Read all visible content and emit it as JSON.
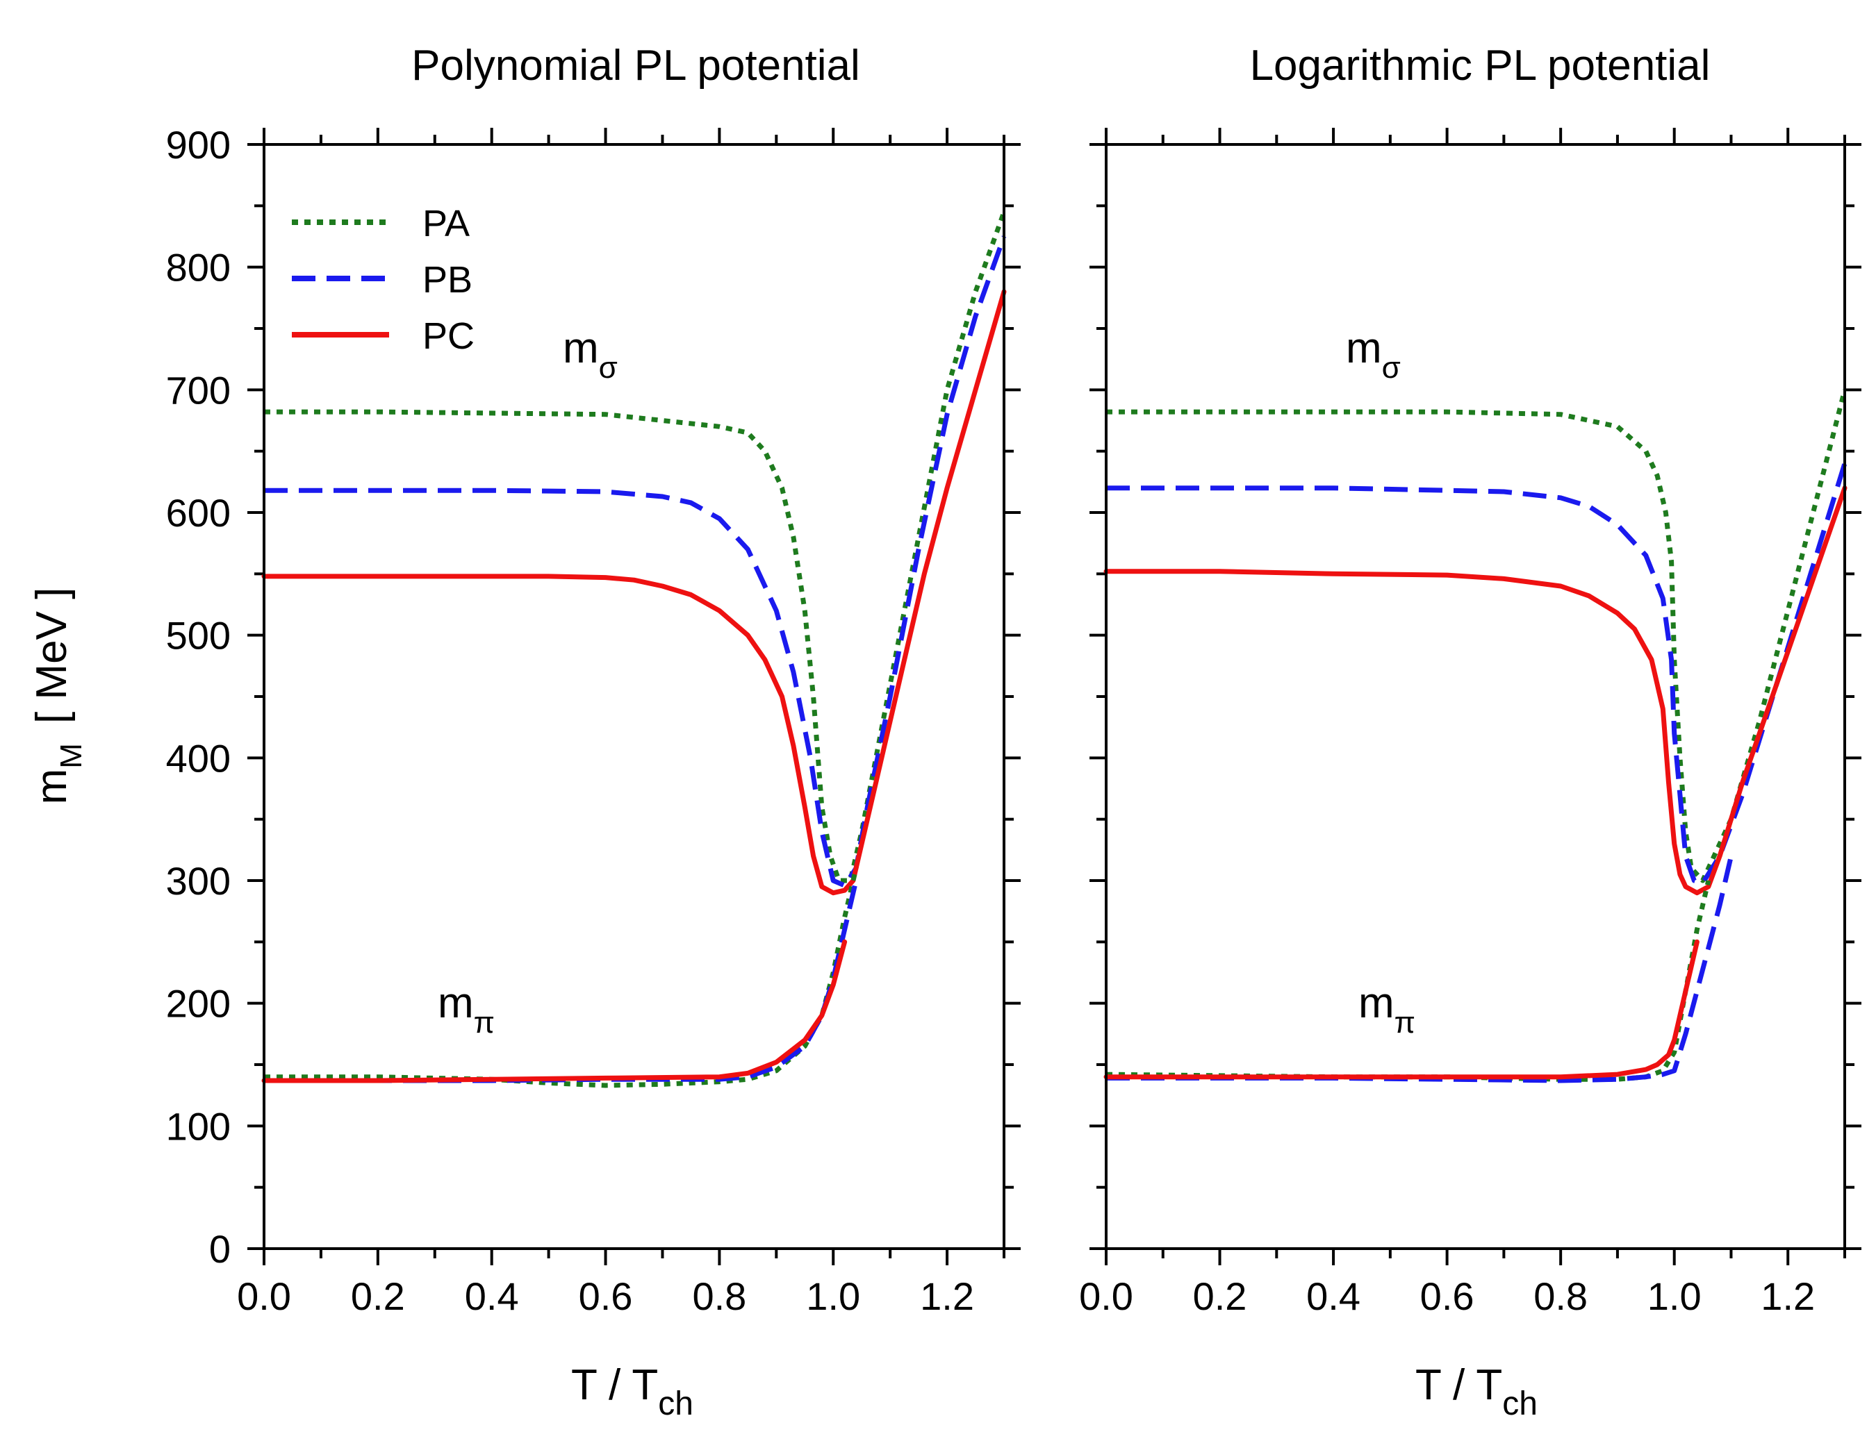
{
  "chart_data": [
    {
      "type": "line",
      "title": "Polynomial PL potential",
      "xlabel": "T / T",
      "xlabel_sub": "ch",
      "ylabel": "m",
      "ylabel_sub": "M",
      "ylabel_unit": "[ MeV ]",
      "xlim": [
        0.0,
        1.3
      ],
      "ylim": [
        0,
        900
      ],
      "x_ticks": [
        "0.0",
        "0.2",
        "0.4",
        "0.6",
        "0.8",
        "1.0",
        "1.2"
      ],
      "y_ticks": [
        "0",
        "100",
        "200",
        "300",
        "400",
        "500",
        "600",
        "700",
        "800",
        "900"
      ],
      "legend": {
        "position": "top-left",
        "entries": [
          "PA",
          "PB",
          "PC"
        ]
      },
      "annotations": [
        {
          "text": "m",
          "sub": "σ",
          "x": 0.52,
          "y": 720
        },
        {
          "text": "m",
          "sub": "π",
          "x": 0.31,
          "y": 185
        }
      ],
      "series": [
        {
          "name": "PA",
          "color": "#1e7b1e",
          "style": "dotted",
          "branch": "sigma",
          "x": [
            0.0,
            0.2,
            0.4,
            0.6,
            0.7,
            0.8,
            0.85,
            0.88,
            0.91,
            0.93,
            0.95,
            0.965,
            0.98,
            0.995,
            1.01,
            1.03,
            1.05,
            1.1,
            1.15,
            1.2,
            1.25,
            1.3
          ],
          "y": [
            682,
            682,
            681,
            680,
            675,
            670,
            665,
            650,
            620,
            580,
            520,
            450,
            360,
            320,
            300,
            300,
            340,
            460,
            580,
            700,
            780,
            845
          ]
        },
        {
          "name": "PB",
          "color": "#1a1aee",
          "style": "dashed",
          "branch": "sigma",
          "x": [
            0.0,
            0.2,
            0.4,
            0.6,
            0.7,
            0.75,
            0.8,
            0.85,
            0.9,
            0.93,
            0.96,
            0.98,
            1.0,
            1.02,
            1.04,
            1.06,
            1.1,
            1.15,
            1.2,
            1.25,
            1.3
          ],
          "y": [
            618,
            618,
            618,
            617,
            613,
            608,
            595,
            570,
            520,
            470,
            400,
            340,
            300,
            296,
            310,
            360,
            450,
            570,
            680,
            760,
            825
          ]
        },
        {
          "name": "PC",
          "color": "#ee1111",
          "style": "solid",
          "branch": "sigma",
          "x": [
            0.0,
            0.2,
            0.4,
            0.5,
            0.6,
            0.65,
            0.7,
            0.75,
            0.8,
            0.85,
            0.88,
            0.91,
            0.93,
            0.95,
            0.965,
            0.98,
            1.0,
            1.02,
            1.035,
            1.05,
            1.08,
            1.12,
            1.16,
            1.2,
            1.25,
            1.3
          ],
          "y": [
            548,
            548,
            548,
            548,
            547,
            545,
            540,
            533,
            520,
            500,
            480,
            450,
            410,
            360,
            320,
            295,
            290,
            292,
            300,
            330,
            390,
            470,
            550,
            620,
            700,
            780
          ]
        },
        {
          "name": "PA",
          "color": "#1e7b1e",
          "style": "dotted",
          "branch": "pi",
          "x": [
            0.0,
            0.2,
            0.4,
            0.5,
            0.6,
            0.7,
            0.8,
            0.85,
            0.9,
            0.95,
            0.98,
            1.0,
            1.02,
            1.04
          ],
          "y": [
            140,
            140,
            138,
            135,
            133,
            134,
            136,
            138,
            145,
            165,
            190,
            225,
            270,
            310
          ]
        },
        {
          "name": "PB",
          "color": "#1a1aee",
          "style": "dashed",
          "branch": "pi",
          "x": [
            0.0,
            0.2,
            0.4,
            0.6,
            0.8,
            0.85,
            0.9,
            0.95,
            0.98,
            1.0,
            1.02,
            1.04
          ],
          "y": [
            137,
            137,
            137,
            138,
            138,
            140,
            148,
            165,
            190,
            220,
            260,
            300
          ]
        },
        {
          "name": "PC",
          "color": "#ee1111",
          "style": "solid",
          "branch": "pi",
          "x": [
            0.0,
            0.2,
            0.4,
            0.6,
            0.8,
            0.85,
            0.9,
            0.95,
            0.98,
            1.0,
            1.02
          ],
          "y": [
            137,
            137,
            138,
            139,
            140,
            143,
            152,
            170,
            190,
            215,
            250
          ]
        }
      ]
    },
    {
      "type": "line",
      "title": "Logarithmic PL potential",
      "xlabel": "T / T",
      "xlabel_sub": "ch",
      "xlim": [
        0.0,
        1.3
      ],
      "ylim": [
        0,
        900
      ],
      "x_ticks": [
        "0.0",
        "0.2",
        "0.4",
        "0.6",
        "0.8",
        "1.0",
        "1.2"
      ],
      "y_ticks": [],
      "annotations": [
        {
          "text": "m",
          "sub": "σ",
          "x": 0.43,
          "y": 720
        },
        {
          "text": "m",
          "sub": "π",
          "x": 0.45,
          "y": 185
        }
      ],
      "series": [
        {
          "name": "PA",
          "color": "#1e7b1e",
          "style": "dotted",
          "branch": "sigma",
          "x": [
            0.0,
            0.2,
            0.4,
            0.6,
            0.8,
            0.9,
            0.95,
            0.97,
            0.985,
            0.995,
            1.0,
            1.01,
            1.02,
            1.03,
            1.05,
            1.1,
            1.15,
            1.2,
            1.25,
            1.3
          ],
          "y": [
            682,
            682,
            682,
            682,
            680,
            670,
            650,
            630,
            600,
            560,
            480,
            400,
            340,
            310,
            300,
            350,
            430,
            520,
            610,
            700
          ]
        },
        {
          "name": "PB",
          "color": "#1a1aee",
          "style": "dashed",
          "branch": "sigma",
          "x": [
            0.0,
            0.2,
            0.4,
            0.6,
            0.7,
            0.8,
            0.85,
            0.9,
            0.95,
            0.98,
            0.995,
            1.0,
            1.01,
            1.02,
            1.035,
            1.05,
            1.08,
            1.12,
            1.18,
            1.24,
            1.3
          ],
          "y": [
            620,
            620,
            620,
            618,
            617,
            612,
            605,
            590,
            565,
            530,
            480,
            420,
            370,
            320,
            300,
            298,
            320,
            370,
            460,
            550,
            640
          ]
        },
        {
          "name": "PC",
          "color": "#ee1111",
          "style": "solid",
          "branch": "sigma",
          "x": [
            0.0,
            0.2,
            0.4,
            0.6,
            0.7,
            0.8,
            0.85,
            0.9,
            0.93,
            0.96,
            0.98,
            0.99,
            1.0,
            1.01,
            1.02,
            1.04,
            1.06,
            1.08,
            1.12,
            1.18,
            1.24,
            1.3
          ],
          "y": [
            552,
            552,
            550,
            549,
            546,
            540,
            532,
            518,
            505,
            480,
            440,
            380,
            330,
            305,
            295,
            290,
            295,
            320,
            380,
            460,
            540,
            620
          ]
        },
        {
          "name": "PA",
          "color": "#1e7b1e",
          "style": "dotted",
          "branch": "pi",
          "x": [
            0.0,
            0.2,
            0.4,
            0.6,
            0.8,
            0.9,
            0.95,
            0.98,
            1.0,
            1.02,
            1.04,
            1.06
          ],
          "y": [
            142,
            141,
            140,
            140,
            138,
            138,
            140,
            145,
            160,
            210,
            260,
            300
          ]
        },
        {
          "name": "PB",
          "color": "#1a1aee",
          "style": "dashed",
          "branch": "pi",
          "x": [
            0.0,
            0.2,
            0.4,
            0.6,
            0.8,
            0.9,
            0.95,
            0.98,
            1.0,
            1.02,
            1.04,
            1.06,
            1.08,
            1.1
          ],
          "y": [
            139,
            139,
            139,
            138,
            137,
            138,
            140,
            142,
            145,
            175,
            210,
            245,
            280,
            320
          ]
        },
        {
          "name": "PC",
          "color": "#ee1111",
          "style": "solid",
          "branch": "pi",
          "x": [
            0.0,
            0.2,
            0.4,
            0.6,
            0.8,
            0.9,
            0.95,
            0.97,
            0.99,
            1.0,
            1.02,
            1.04
          ],
          "y": [
            140,
            140,
            140,
            140,
            140,
            142,
            146,
            150,
            158,
            170,
            210,
            250
          ]
        }
      ]
    }
  ]
}
